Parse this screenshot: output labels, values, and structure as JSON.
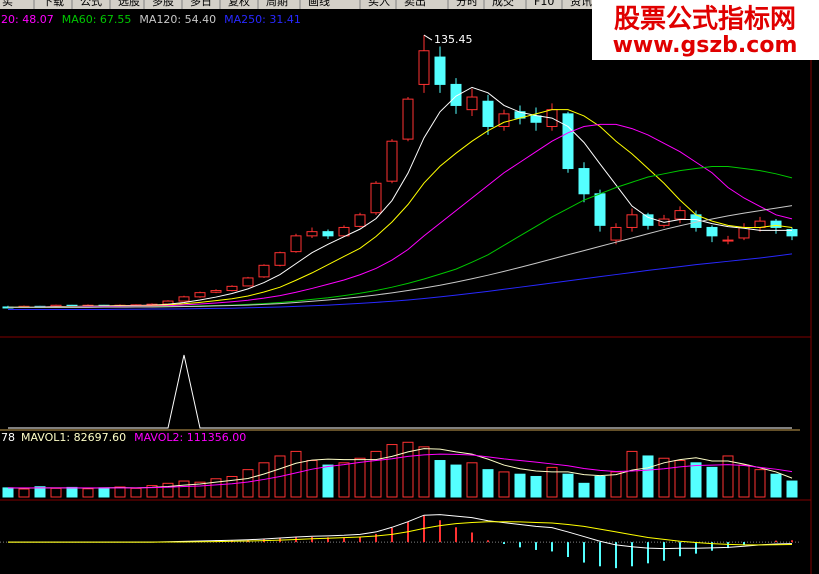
{
  "toolbar": [
    "实",
    "下载",
    "公式",
    "选股",
    "多股",
    "多日",
    "复权",
    "周期",
    "画线",
    "买入",
    "卖出",
    "分时",
    "成交",
    "F10",
    "资讯"
  ],
  "watermark": {
    "title": "股票公式指标网",
    "url": "www.gszb.com"
  },
  "chart_data": [
    {
      "type": "candlestick",
      "ylim": [
        0,
        145
      ],
      "up_color": "#ff3232",
      "down_color": "#54ffff",
      "open": [
        6.2,
        6,
        6.5,
        6.2,
        7,
        6.5,
        7,
        6.8,
        7,
        7.2,
        7.6,
        9,
        11,
        13.2,
        14,
        16.2,
        20.5,
        26,
        32.5,
        40,
        42,
        40,
        44.5,
        51,
        66,
        86,
        112,
        125,
        112,
        100,
        104,
        92,
        99,
        97,
        92,
        98,
        72,
        60,
        38,
        44,
        50,
        45,
        48,
        50,
        44,
        38,
        39,
        44,
        47,
        43
      ],
      "high": [
        6.8,
        6.9,
        6.7,
        7.3,
        7.2,
        7.4,
        7.2,
        7.4,
        7.5,
        7.9,
        9.4,
        11.5,
        13.5,
        14.6,
        16.5,
        20.5,
        26.5,
        32.5,
        41,
        44,
        43,
        45,
        51,
        66,
        86,
        106,
        135.45,
        130,
        115,
        110,
        107,
        100,
        102,
        101,
        103,
        99,
        75,
        62,
        46,
        53,
        51,
        50,
        54,
        52,
        45,
        40,
        46,
        49,
        48,
        44
      ],
      "low": [
        5.8,
        5.8,
        5.8,
        6,
        6.2,
        6.3,
        6.5,
        6.6,
        6.8,
        7,
        7.5,
        8.8,
        10.6,
        12.8,
        13.6,
        16,
        20,
        25.5,
        32,
        39,
        38.5,
        39.5,
        44,
        50,
        65,
        85,
        108,
        108,
        98,
        97,
        88,
        90,
        93,
        90,
        90,
        70,
        56,
        42,
        36,
        42,
        43,
        44,
        46,
        42,
        37,
        36,
        38,
        42,
        41,
        38
      ],
      "close": [
        6,
        6.5,
        6,
        7,
        6.5,
        7,
        6.8,
        7,
        7.2,
        7.5,
        9,
        11,
        13,
        14,
        16,
        20,
        26,
        32,
        40,
        42,
        40,
        44,
        50,
        65,
        85,
        105,
        128,
        112,
        102,
        106,
        92,
        98,
        96,
        94,
        100,
        72,
        60,
        45,
        44,
        50,
        45,
        48,
        52,
        44,
        40,
        38,
        44,
        47,
        44,
        40
      ],
      "series": [
        {
          "color": "#ffffff",
          "values": [
            6,
            6.2,
            6.2,
            6.4,
            6.4,
            6.6,
            6.7,
            6.9,
            6.9,
            7.1,
            7.5,
            8.3,
            9.5,
            10.9,
            12.6,
            14.8,
            17.8,
            21.6,
            26.8,
            32,
            36,
            39.6,
            43.2,
            48.2,
            56.8,
            69.8,
            86.6,
            99,
            106.4,
            110.6,
            108,
            102,
            98.8,
            97.2,
            96,
            92,
            84.4,
            74.2,
            64.2,
            54.2,
            48.8,
            46.4,
            47.8,
            47.8,
            45.8,
            44.4,
            43.6,
            42.6,
            42.6,
            42.6
          ]
        },
        {
          "color": "#ffff00",
          "values": [
            6,
            6.2,
            6.2,
            6.3,
            6.4,
            6.5,
            6.6,
            6.7,
            6.8,
            6.9,
            7.2,
            7.7,
            8.4,
            9.2,
            10.1,
            11.4,
            13.3,
            15.6,
            18.9,
            22.4,
            26.3,
            30.2,
            34.1,
            39.7,
            46.6,
            54.9,
            65.1,
            73.1,
            79.3,
            85,
            90,
            94,
            96,
            98,
            100,
            100,
            97,
            92,
            85,
            79,
            72,
            65,
            57,
            50,
            47,
            45,
            44,
            44,
            45,
            44
          ]
        },
        {
          "name": "20: 48.07",
          "color": "#ff00ff",
          "values": [
            6,
            6,
            6.1,
            6.2,
            6.3,
            6.4,
            6.5,
            6.5,
            6.6,
            6.6,
            6.8,
            7.2,
            7.6,
            8.1,
            8.7,
            9.4,
            10.4,
            11.6,
            13.2,
            15,
            17,
            19,
            21.5,
            24.5,
            28.5,
            33.5,
            40,
            46,
            52,
            58,
            64,
            70,
            75,
            80,
            85,
            89,
            92,
            93,
            93,
            91,
            88,
            84,
            80,
            75,
            70,
            63,
            58,
            54,
            50,
            48.07
          ]
        },
        {
          "name": "MA60: 67.55",
          "color": "#00c800",
          "values": [
            6,
            6,
            6,
            6,
            6.1,
            6.1,
            6.2,
            6.2,
            6.3,
            6.3,
            6.4,
            6.5,
            6.7,
            6.9,
            7.1,
            7.4,
            7.8,
            8.3,
            9,
            9.8,
            10.6,
            11.6,
            12.7,
            14,
            15.6,
            17.4,
            19.5,
            21.8,
            24.2,
            27.5,
            31,
            35.5,
            40,
            44.5,
            49,
            53,
            57,
            60,
            63,
            65.5,
            68,
            69.5,
            71,
            72,
            73,
            73,
            72,
            71,
            69.5,
            67.55
          ]
        },
        {
          "name": "MA120: 54.40",
          "color": "#c8c8c8",
          "values": [
            6,
            6,
            6,
            6,
            6,
            6,
            6.1,
            6.1,
            6.2,
            6.2,
            6.3,
            6.4,
            6.5,
            6.7,
            6.9,
            7.1,
            7.4,
            7.8,
            8.3,
            8.9,
            9.5,
            10.2,
            11,
            11.9,
            12.9,
            14,
            15.2,
            16.5,
            18,
            19.6,
            21.3,
            23.1,
            25,
            27,
            29,
            31,
            33,
            35,
            37,
            39,
            41,
            43,
            44.8,
            46.5,
            48,
            49.5,
            50.8,
            52,
            53.2,
            54.4
          ]
        },
        {
          "name": "MA250: 31.41",
          "color": "#2828ff",
          "values": [
            5,
            5,
            5,
            5,
            5,
            5,
            5,
            5.1,
            5.1,
            5.2,
            5.2,
            5.3,
            5.4,
            5.5,
            5.6,
            5.8,
            6,
            6.2,
            6.5,
            6.8,
            7.1,
            7.5,
            7.9,
            8.4,
            8.9,
            9.5,
            10.2,
            11,
            11.8,
            12.7,
            13.6,
            14.6,
            15.6,
            16.6,
            17.6,
            18.6,
            19.6,
            20.6,
            21.6,
            22.6,
            23.6,
            24.5,
            25.4,
            26.3,
            27.1,
            27.9,
            28.7,
            29.5,
            30.4,
            31.41
          ]
        }
      ]
    },
    {
      "type": "line",
      "ylim": [
        0,
        100
      ],
      "series": [
        {
          "color": "#ffffff",
          "values": [
            0,
            0,
            0,
            0,
            0,
            0,
            0,
            0,
            0,
            0,
            0,
            100,
            0,
            0,
            0,
            0,
            0,
            0,
            0,
            0,
            0,
            0,
            0,
            0,
            0,
            0,
            0,
            0,
            0,
            0,
            0,
            0,
            0,
            0,
            0,
            0,
            0,
            0,
            0,
            0,
            0,
            0,
            0,
            0,
            0,
            0,
            0,
            0,
            0,
            0
          ]
        }
      ]
    },
    {
      "type": "bar",
      "ylim": [
        0,
        250000
      ],
      "up_color": "#ff3232",
      "down_color": "#54ffff",
      "legend_prefix": "78",
      "values": [
        40000,
        35000,
        45000,
        38000,
        42000,
        36000,
        40000,
        44000,
        38000,
        50000,
        60000,
        70000,
        65000,
        80000,
        90000,
        120000,
        150000,
        180000,
        200000,
        160000,
        140000,
        150000,
        170000,
        200000,
        230000,
        240000,
        220000,
        160000,
        140000,
        150000,
        120000,
        110000,
        100000,
        90000,
        130000,
        100000,
        60000,
        90000,
        110000,
        200000,
        180000,
        170000,
        160000,
        150000,
        130000,
        180000,
        140000,
        120000,
        100000,
        70000
      ],
      "series": [
        {
          "name": "MAVOL1: 82697.60",
          "color": "#ffffc8",
          "values": [
            40000,
            39000,
            40000,
            40000,
            40000,
            39000,
            40000,
            41000,
            40000,
            42000,
            46000,
            52000,
            57000,
            65000,
            73000,
            81000,
            101000,
            124000,
            148000,
            162000,
            166000,
            164000,
            164000,
            164000,
            178000,
            198000,
            212000,
            210000,
            198000,
            188000,
            166000,
            140000,
            124000,
            114000,
            110000,
            110000,
            98000,
            94000,
            98000,
            118000,
            128000,
            150000,
            164000,
            172000,
            158000,
            158000,
            144000,
            128000,
            110000,
            82697.6
          ]
        },
        {
          "name": "MAVOL2: 111356.00",
          "color": "#ff00ff",
          "values": [
            40000,
            40000,
            40000,
            40000,
            40000,
            40000,
            40000,
            40000,
            40000,
            41000,
            43000,
            46000,
            48000,
            53000,
            58000,
            66000,
            77000,
            90000,
            106000,
            122000,
            134000,
            142000,
            152000,
            160000,
            168000,
            178000,
            185000,
            188000,
            187000,
            184000,
            176000,
            167000,
            160000,
            153000,
            145000,
            137000,
            125000,
            117000,
            112000,
            114000,
            118000,
            124000,
            132000,
            138000,
            140000,
            142000,
            138000,
            130000,
            122000,
            111356
          ]
        }
      ]
    },
    {
      "type": "bar",
      "ylim": [
        -15,
        20
      ],
      "up_color": "#ff3232",
      "down_color": "#54ffff",
      "values": [
        0,
        0,
        0,
        0,
        0,
        0,
        0,
        0,
        0,
        0,
        0.3,
        0.6,
        0.8,
        1,
        1.1,
        1.4,
        1.8,
        2.2,
        2.8,
        2.8,
        2.6,
        2.6,
        2.8,
        4.4,
        7.6,
        10.8,
        14.2,
        11.8,
        8,
        5.2,
        1,
        -1,
        -2.8,
        -4.2,
        -5,
        -8,
        -11,
        -13,
        -14,
        -13,
        -11.4,
        -10,
        -7.6,
        -6.2,
        -4.6,
        -3.2,
        -1.4,
        0,
        0.8,
        1
      ],
      "series": [
        {
          "color": "#ffffff",
          "values": [
            0,
            0,
            0,
            0,
            0,
            0,
            0,
            0,
            0,
            0,
            0.2,
            0.4,
            0.6,
            0.8,
            1,
            1.3,
            1.7,
            2.2,
            2.8,
            3.2,
            3.4,
            3.7,
            4.2,
            5.5,
            8,
            11,
            14.5,
            14.8,
            14,
            13.2,
            11.5,
            10.5,
            9.5,
            8.5,
            7.8,
            5.5,
            3,
            0.5,
            -1.5,
            -2.5,
            -3.2,
            -3.5,
            -3.3,
            -3.3,
            -3.1,
            -2.8,
            -2.2,
            -1.5,
            -1,
            -0.8
          ]
        },
        {
          "color": "#ffff00",
          "values": [
            0,
            0,
            0,
            0,
            0,
            0,
            0,
            0,
            0,
            0,
            0.05,
            0.1,
            0.2,
            0.3,
            0.45,
            0.6,
            0.8,
            1.1,
            1.4,
            1.8,
            2.1,
            2.4,
            2.8,
            3.3,
            4.2,
            5.6,
            7.4,
            8.9,
            10,
            10.6,
            11,
            11,
            10.9,
            10.6,
            10.3,
            9.5,
            8.5,
            7,
            5.5,
            4,
            2.5,
            1.5,
            0.5,
            -0.2,
            -0.8,
            -1.2,
            -1.5,
            -1.5,
            -1.4,
            -1.3
          ]
        }
      ]
    }
  ]
}
